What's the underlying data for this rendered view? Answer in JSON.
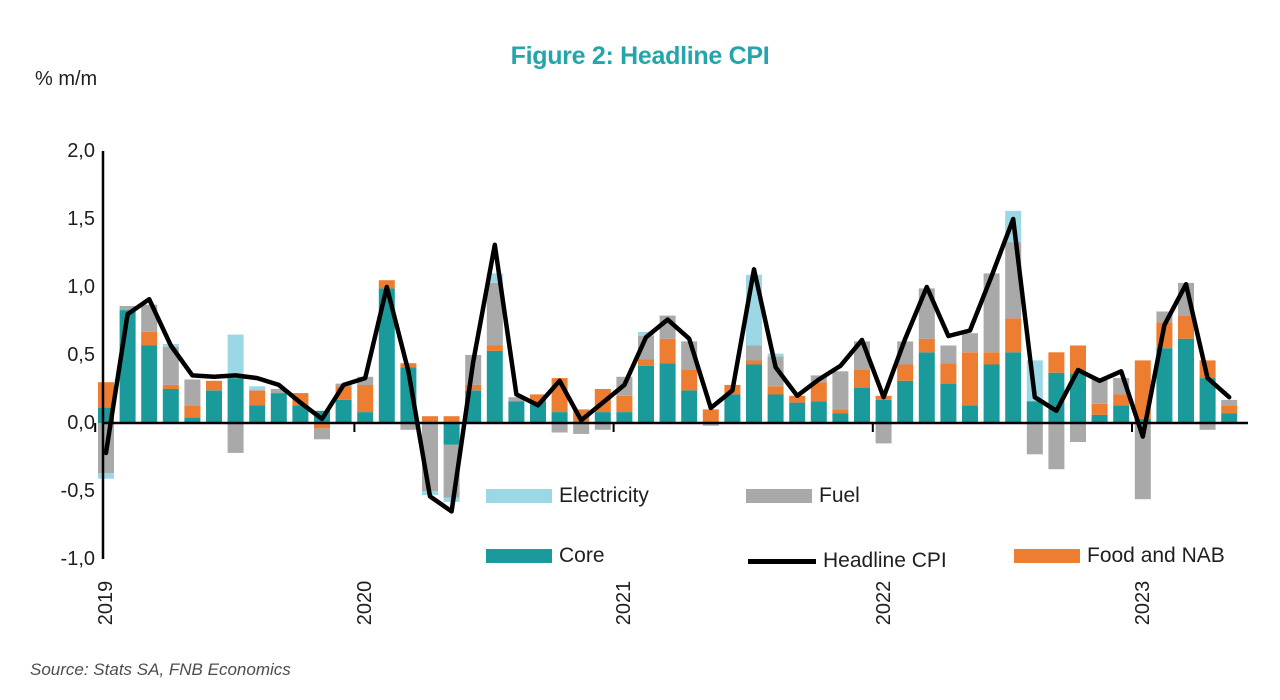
{
  "title": "Figure 2: Headline CPI",
  "unit_label": "% m/m",
  "source": "Source: Stats SA, FNB Economics",
  "colors": {
    "core": "#1B9A9B",
    "food_and_nab": "#ED7D31",
    "fuel": "#A9A9A9",
    "electricity": "#9BD7E5",
    "headline_line": "#000000",
    "title_accent": "#25A5AA"
  },
  "legend": {
    "row1": [
      {
        "label": "Electricity",
        "swatch": "electricity"
      },
      {
        "label": "Fuel",
        "swatch": "fuel"
      }
    ],
    "row2": [
      {
        "label": "Core",
        "swatch": "core"
      },
      {
        "label": "Headline CPI",
        "swatch": "line"
      },
      {
        "label": "Food and NAB",
        "swatch": "food_and_nab"
      }
    ]
  },
  "chart_data": {
    "type": "bar",
    "subtype": "stacked monthly contributions with overlaid line",
    "title": "Figure 2: Headline CPI",
    "ylabel": "% m/m",
    "ylim": [
      -1.0,
      2.0
    ],
    "y_ticks": [
      "2,0",
      "1,5",
      "1,0",
      "0,5",
      "0,0",
      "-0,5",
      "-1,0"
    ],
    "y_tick_values": [
      2.0,
      1.5,
      1.0,
      0.5,
      0.0,
      -0.5,
      -1.0
    ],
    "x_year_labels": [
      "2019",
      "2020",
      "2021",
      "2022",
      "2023"
    ],
    "frequency": "monthly, Jan 2019 - May 2023 (53 months)",
    "grid": false,
    "legend_position": "inside lower-middle, two rows",
    "series": [
      {
        "name": "Core",
        "type": "bar",
        "color_key": "core",
        "values": [
          0.11,
          0.83,
          0.57,
          0.25,
          0.04,
          0.24,
          0.33,
          0.13,
          0.22,
          0.13,
          0.09,
          0.17,
          0.08,
          0.99,
          0.41,
          0.0,
          -0.16,
          0.24,
          0.53,
          0.16,
          0.16,
          0.08,
          0.0,
          0.08,
          0.08,
          0.42,
          0.44,
          0.24,
          0.0,
          0.21,
          0.43,
          0.21,
          0.15,
          0.16,
          0.07,
          0.26,
          0.17,
          0.31,
          0.52,
          0.29,
          0.13,
          0.43,
          0.52,
          0.16,
          0.37,
          0.36,
          0.06,
          0.13,
          0.03,
          0.55,
          0.62,
          0.33,
          0.07
        ]
      },
      {
        "name": "Food and NAB",
        "type": "bar",
        "color_key": "food_and_nab",
        "values": [
          0.19,
          0.0,
          0.1,
          0.03,
          0.09,
          0.07,
          0.0,
          0.11,
          0.0,
          0.09,
          -0.04,
          0.1,
          0.2,
          0.06,
          0.03,
          0.05,
          0.05,
          0.04,
          0.04,
          0.0,
          0.05,
          0.25,
          0.1,
          0.17,
          0.12,
          0.05,
          0.18,
          0.15,
          0.1,
          0.07,
          0.03,
          0.06,
          0.05,
          0.14,
          0.03,
          0.13,
          0.03,
          0.12,
          0.1,
          0.15,
          0.39,
          0.09,
          0.25,
          0.0,
          0.15,
          0.21,
          0.08,
          0.08,
          0.43,
          0.19,
          0.17,
          0.13,
          0.06
        ]
      },
      {
        "name": "Fuel",
        "type": "bar",
        "color_key": "fuel",
        "values": [
          -0.37,
          0.03,
          0.2,
          0.28,
          0.19,
          0.0,
          -0.22,
          0.0,
          0.03,
          0.0,
          -0.08,
          0.02,
          0.06,
          0.0,
          -0.05,
          -0.5,
          -0.39,
          0.22,
          0.46,
          0.03,
          0.0,
          -0.07,
          -0.08,
          -0.05,
          0.14,
          0.17,
          0.17,
          0.21,
          -0.02,
          0.0,
          0.11,
          0.22,
          0.0,
          0.05,
          0.28,
          0.21,
          -0.15,
          0.17,
          0.37,
          0.13,
          0.14,
          0.58,
          0.56,
          -0.23,
          -0.34,
          -0.14,
          0.19,
          0.12,
          -0.56,
          0.08,
          0.24,
          -0.05,
          0.04
        ]
      },
      {
        "name": "Electricity",
        "type": "bar",
        "color_key": "electricity",
        "values": [
          -0.04,
          0,
          0,
          0.02,
          0,
          0,
          0.32,
          0.03,
          0,
          0,
          0,
          0,
          0,
          0,
          0,
          -0.03,
          -0.03,
          0,
          0.07,
          0,
          0,
          0,
          0,
          0,
          0,
          0.03,
          0,
          0,
          0,
          0,
          0.52,
          0.02,
          0,
          0,
          0,
          0,
          0,
          0,
          0,
          0,
          0,
          0,
          0.23,
          0.3,
          0,
          0,
          0,
          0,
          0,
          0,
          0,
          0,
          0
        ]
      },
      {
        "name": "Headline CPI",
        "type": "line",
        "color_key": "headline_line",
        "values": [
          -0.22,
          0.8,
          0.91,
          0.57,
          0.35,
          0.34,
          0.35,
          0.33,
          0.28,
          0.15,
          0.03,
          0.28,
          0.33,
          1.0,
          0.38,
          -0.54,
          -0.65,
          0.45,
          1.31,
          0.21,
          0.13,
          0.31,
          0.02,
          0.15,
          0.28,
          0.63,
          0.76,
          0.62,
          0.11,
          0.24,
          1.13,
          0.41,
          0.2,
          0.32,
          0.42,
          0.61,
          0.19,
          0.62,
          1.0,
          0.64,
          0.68,
          1.08,
          1.5,
          0.19,
          0.09,
          0.39,
          0.31,
          0.38,
          -0.1,
          0.72,
          1.02,
          0.33,
          0.19
        ]
      }
    ]
  }
}
